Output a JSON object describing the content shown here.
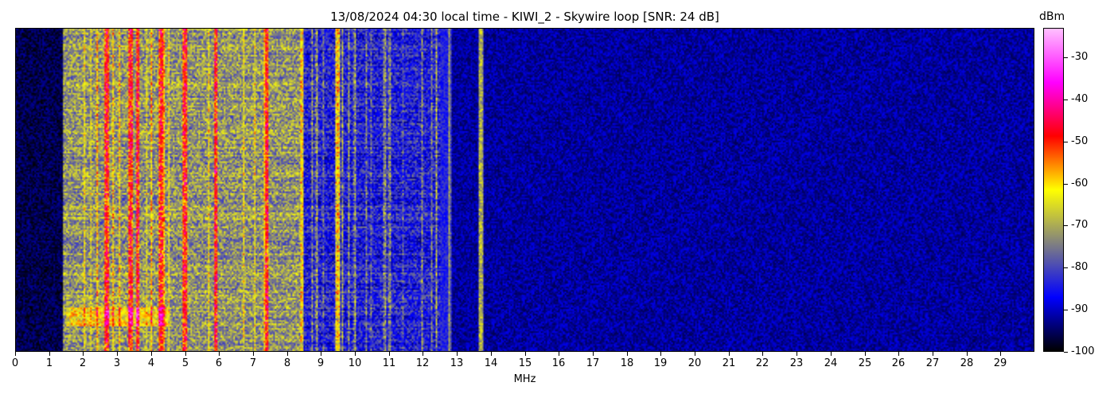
{
  "chart_data": {
    "type": "heatmap",
    "title": "13/08/2024 04:30 local time - KIWI_2 - Skywire loop [SNR: 24 dB]",
    "xlabel": "MHz",
    "ylabel": "",
    "xlim": [
      0,
      30
    ],
    "x_ticks": [
      "0",
      "1",
      "2",
      "3",
      "4",
      "5",
      "6",
      "7",
      "8",
      "9",
      "10",
      "11",
      "12",
      "13",
      "14",
      "15",
      "16",
      "17",
      "18",
      "19",
      "20",
      "21",
      "22",
      "23",
      "24",
      "25",
      "26",
      "27",
      "28",
      "29"
    ],
    "x_tick_values": [
      0,
      1,
      2,
      3,
      4,
      5,
      6,
      7,
      8,
      9,
      10,
      11,
      12,
      13,
      14,
      15,
      16,
      17,
      18,
      19,
      20,
      21,
      22,
      23,
      24,
      25,
      26,
      27,
      28,
      29
    ],
    "colorbar": {
      "label": "dBm",
      "range": [
        -100,
        -23
      ],
      "ticks": [
        "-30",
        "-40",
        "-50",
        "-60",
        "-70",
        "-80",
        "-90",
        "-100"
      ],
      "tick_values": [
        -30,
        -40,
        -50,
        -60,
        -70,
        -80,
        -90,
        -100
      ],
      "colors": [
        "#000000",
        "#0000ff",
        "#808080",
        "#ffff00",
        "#ff0000",
        "#ff00ff",
        "#ffc0ff"
      ]
    },
    "approx_level_by_band": [
      {
        "from": 0,
        "to": 1.4,
        "level_dbm": -96
      },
      {
        "from": 1.4,
        "to": 8.5,
        "level_dbm": -72
      },
      {
        "from": 8.5,
        "to": 12.8,
        "level_dbm": -84
      },
      {
        "from": 12.8,
        "to": 30,
        "level_dbm": -92
      }
    ],
    "strong_carriers_mhz": [
      2.7,
      3.4,
      3.6,
      4.3,
      5.0,
      5.9,
      7.4,
      9.5,
      13.7
    ]
  }
}
